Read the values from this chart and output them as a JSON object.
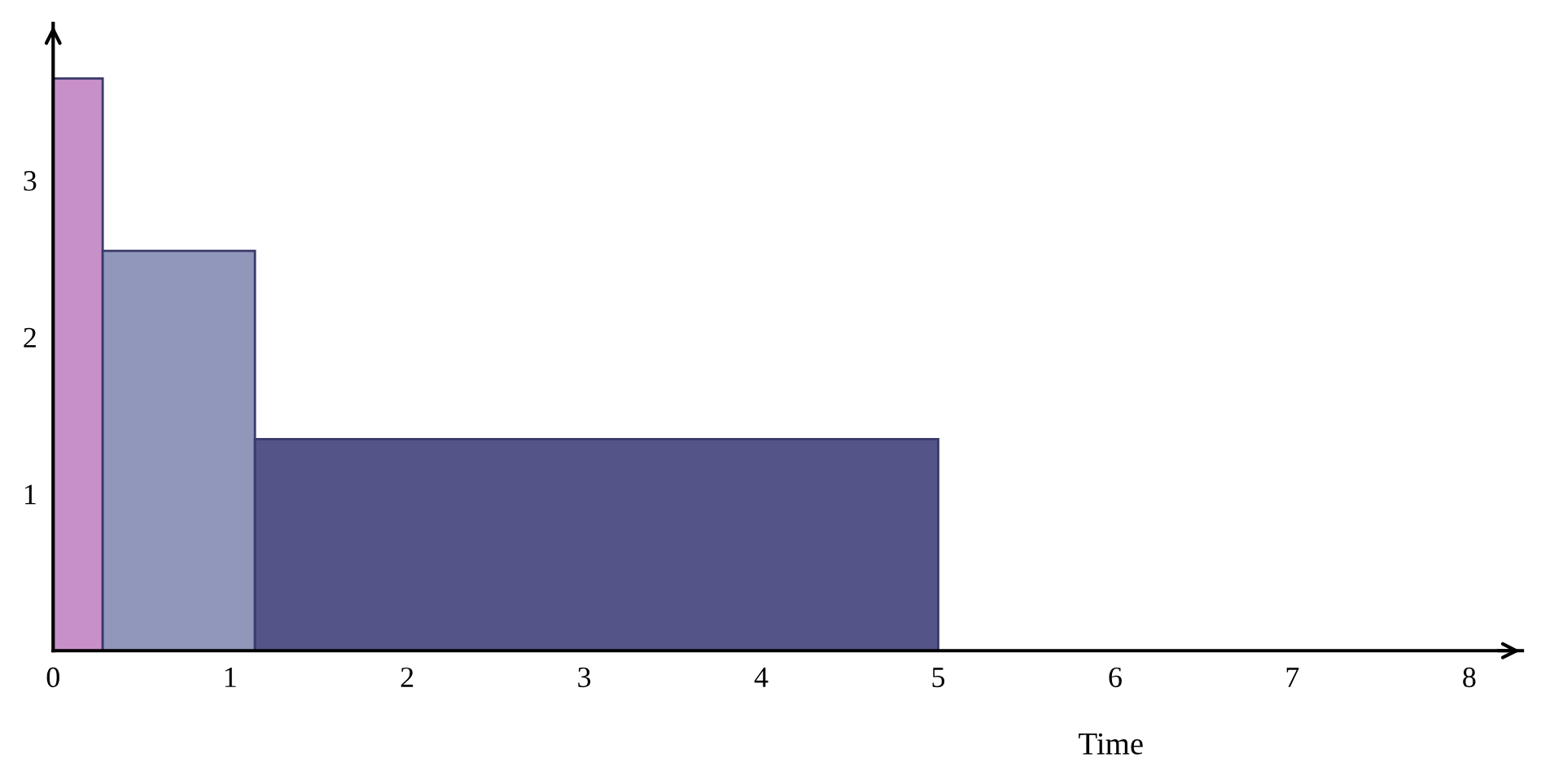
{
  "chart_data": {
    "type": "histogram",
    "xlabel": "Time",
    "bins": [
      0,
      0.28,
      1.14,
      5
    ],
    "values": [
      3.65,
      2.55,
      1.35
    ],
    "colors": [
      "#c890c8",
      "#9196bb",
      "#545489"
    ],
    "xlim": [
      0,
      8.3
    ],
    "ylim": [
      0,
      4
    ],
    "xticks": [
      0,
      1,
      2,
      3,
      4,
      5,
      6,
      7,
      8
    ],
    "yticks": [
      1,
      2,
      3
    ],
    "grid": false,
    "legend": false
  }
}
